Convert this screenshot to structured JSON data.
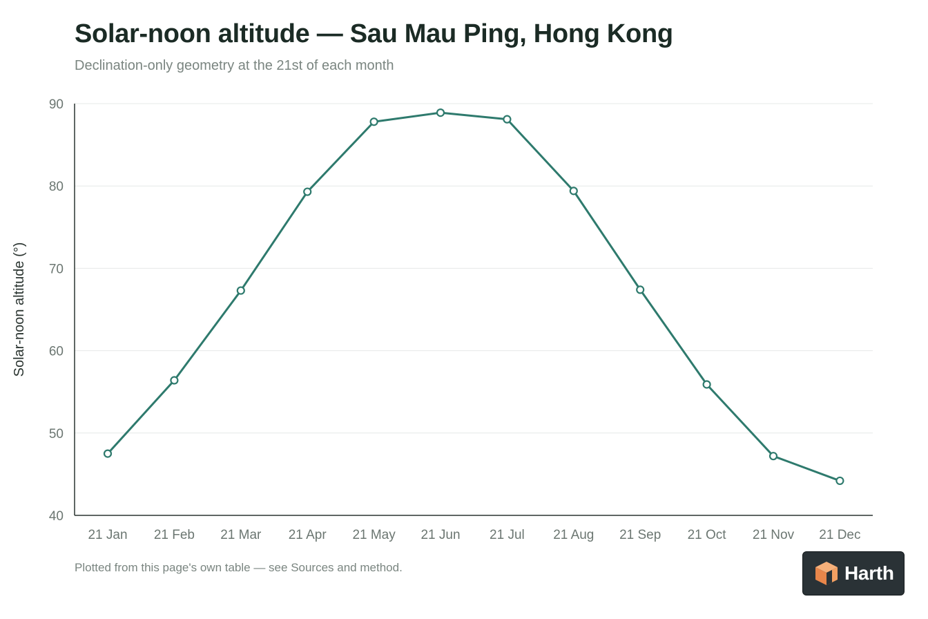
{
  "header": {
    "title": "Solar-noon altitude — Sau Mau Ping, Hong Kong",
    "subtitle": "Declination-only geometry at the 21st of each month"
  },
  "footer": {
    "note": "Plotted from this page's own table — see Sources and method."
  },
  "badge": {
    "label": "Harth",
    "icon": "cube-logo-icon",
    "background": "#2a3236",
    "accent": "#f3a062"
  },
  "chart_data": {
    "type": "line",
    "categories": [
      "21 Jan",
      "21 Feb",
      "21 Mar",
      "21 Apr",
      "21 May",
      "21 Jun",
      "21 Jul",
      "21 Aug",
      "21 Sep",
      "21 Oct",
      "21 Nov",
      "21 Dec"
    ],
    "series": [
      {
        "values": [
          47.5,
          56.4,
          67.3,
          79.3,
          87.8,
          88.9,
          88.1,
          79.4,
          67.4,
          55.9,
          47.2,
          44.2
        ],
        "color": "#2e7a6d"
      }
    ],
    "ylabel": "Solar-noon altitude (°)",
    "xlabel": "",
    "ylim": [
      40,
      90
    ],
    "yticks": [
      40,
      50,
      60,
      70,
      80,
      90
    ],
    "grid": true,
    "legend": "none"
  }
}
